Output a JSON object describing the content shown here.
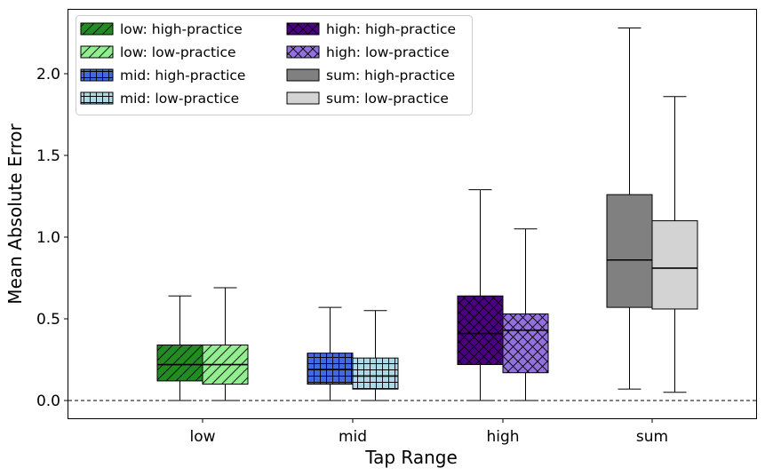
{
  "chart_data": {
    "type": "box",
    "xlabel": "Tap Range",
    "ylabel": "Mean Absolute Error",
    "categories": [
      "low",
      "mid",
      "high",
      "sum"
    ],
    "ylim": [
      -0.12,
      2.4
    ],
    "yticks": [
      "0.0",
      "0.5",
      "1.0",
      "1.5",
      "2.0"
    ],
    "reference_line": {
      "y": 0.0,
      "style": "dashed"
    },
    "legend_position": "top-left",
    "legend": [
      "low: high-practice",
      "low: low-practice",
      "mid: high-practice",
      "mid: low-practice",
      "high: high-practice",
      "high: low-practice",
      "sum: high-practice",
      "sum: low-practice"
    ],
    "series": [
      {
        "category": "low",
        "group": "high-practice",
        "min": 0.0,
        "q1": 0.12,
        "median": 0.22,
        "q3": 0.34,
        "max": 0.64,
        "color": "#228b22",
        "hatch": "diag"
      },
      {
        "category": "low",
        "group": "low-practice",
        "min": 0.0,
        "q1": 0.1,
        "median": 0.22,
        "q3": 0.34,
        "max": 0.69,
        "color": "#90ee90",
        "hatch": "diag"
      },
      {
        "category": "mid",
        "group": "high-practice",
        "min": 0.0,
        "q1": 0.1,
        "median": 0.19,
        "q3": 0.29,
        "max": 0.57,
        "color": "#4169e1",
        "hatch": "grid"
      },
      {
        "category": "mid",
        "group": "low-practice",
        "min": 0.0,
        "q1": 0.07,
        "median": 0.15,
        "q3": 0.26,
        "max": 0.55,
        "color": "#add8e6",
        "hatch": "grid"
      },
      {
        "category": "high",
        "group": "high-practice",
        "min": 0.0,
        "q1": 0.22,
        "median": 0.41,
        "q3": 0.64,
        "max": 1.29,
        "color": "#4b0082",
        "hatch": "cross"
      },
      {
        "category": "high",
        "group": "low-practice",
        "min": 0.0,
        "q1": 0.17,
        "median": 0.43,
        "q3": 0.53,
        "max": 1.05,
        "color": "#9370db",
        "hatch": "cross"
      },
      {
        "category": "sum",
        "group": "high-practice",
        "min": 0.07,
        "q1": 0.57,
        "median": 0.86,
        "q3": 1.26,
        "max": 2.28,
        "color": "#808080",
        "hatch": "none"
      },
      {
        "category": "sum",
        "group": "low-practice",
        "min": 0.05,
        "q1": 0.56,
        "median": 0.81,
        "q3": 1.1,
        "max": 1.86,
        "color": "#d3d3d3",
        "hatch": "none"
      }
    ]
  }
}
